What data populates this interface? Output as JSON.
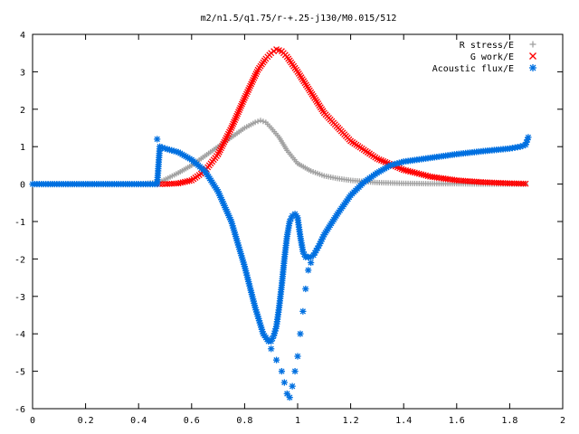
{
  "chart_data": {
    "type": "scatter",
    "title": "m2/n1.5/q1.75/r-+.25-j130/M0.015/512",
    "xlim": [
      0,
      2
    ],
    "ylim": [
      -6,
      4
    ],
    "xticks": [
      "0",
      "0.2",
      "0.4",
      "0.6",
      "0.8",
      "1",
      "1.2",
      "1.4",
      "1.6",
      "1.8",
      "2"
    ],
    "yticks": [
      "4",
      "3",
      "2",
      "1",
      "0",
      "-1",
      "-2",
      "-3",
      "-4",
      "-5",
      "-6"
    ],
    "grid": false,
    "legend_position": "top-right",
    "series": [
      {
        "name": "R stress/E",
        "marker": "plus",
        "color": "#a0a0a0",
        "x": [
          0,
          0.1,
          0.2,
          0.3,
          0.4,
          0.48,
          0.55,
          0.6,
          0.65,
          0.7,
          0.75,
          0.8,
          0.84,
          0.86,
          0.88,
          0.9,
          0.93,
          0.96,
          1.0,
          1.05,
          1.1,
          1.15,
          1.2,
          1.3,
          1.4,
          1.5,
          1.6,
          1.7,
          1.8,
          1.86
        ],
        "y": [
          0,
          0,
          0,
          0,
          0,
          0.05,
          0.3,
          0.5,
          0.75,
          1.0,
          1.25,
          1.5,
          1.65,
          1.7,
          1.65,
          1.5,
          1.25,
          0.9,
          0.55,
          0.35,
          0.22,
          0.15,
          0.1,
          0.04,
          0.02,
          0.01,
          0.01,
          0.0,
          0.0,
          0.0
        ]
      },
      {
        "name": "G work/E",
        "marker": "cross",
        "color": "#ff0000",
        "x": [
          0.48,
          0.5,
          0.55,
          0.6,
          0.65,
          0.7,
          0.75,
          0.8,
          0.85,
          0.88,
          0.9,
          0.92,
          0.94,
          0.96,
          1.0,
          1.05,
          1.1,
          1.2,
          1.3,
          1.4,
          1.5,
          1.6,
          1.7,
          1.8,
          1.86
        ],
        "y": [
          0,
          0,
          0.02,
          0.1,
          0.35,
          0.8,
          1.5,
          2.3,
          3.05,
          3.35,
          3.5,
          3.6,
          3.55,
          3.4,
          3.0,
          2.45,
          1.9,
          1.15,
          0.68,
          0.38,
          0.2,
          0.1,
          0.05,
          0.02,
          0.01
        ]
      },
      {
        "name": "Acoustic flux/E",
        "marker": "star",
        "color": "#0070e0",
        "x": [
          0,
          0.1,
          0.2,
          0.3,
          0.4,
          0.47,
          0.48,
          0.5,
          0.55,
          0.6,
          0.65,
          0.7,
          0.75,
          0.8,
          0.84,
          0.87,
          0.89,
          0.9,
          0.91,
          0.92,
          0.93,
          0.94,
          0.95,
          0.96,
          0.97,
          0.98,
          0.99,
          1.0,
          1.01,
          1.02,
          1.03,
          1.04,
          1.05,
          1.06,
          1.08,
          1.1,
          1.15,
          1.2,
          1.25,
          1.3,
          1.35,
          1.4,
          1.5,
          1.6,
          1.7,
          1.8,
          1.84,
          1.86,
          1.87
        ],
        "y": [
          0,
          0,
          0,
          0,
          0,
          0,
          1.0,
          0.95,
          0.85,
          0.65,
          0.35,
          -0.2,
          -1.0,
          -2.2,
          -3.3,
          -4.0,
          -4.2,
          -4.2,
          -4.05,
          -3.8,
          -3.3,
          -2.7,
          -2.0,
          -1.4,
          -1.0,
          -0.85,
          -0.8,
          -0.9,
          -1.4,
          -1.8,
          -1.95,
          -1.95,
          -1.95,
          -1.9,
          -1.65,
          -1.35,
          -0.8,
          -0.3,
          0.05,
          0.3,
          0.5,
          0.6,
          0.7,
          0.8,
          0.88,
          0.95,
          1.0,
          1.05,
          1.25
        ]
      },
      {
        "name": "",
        "marker": "star",
        "color": "#0070e0",
        "x": [
          0.47,
          0.9,
          0.92,
          0.94,
          0.95,
          0.96,
          0.97,
          0.98,
          0.99,
          1.0,
          1.01,
          1.02,
          1.03,
          1.04,
          1.05
        ],
        "y": [
          1.2,
          -4.4,
          -4.7,
          -5.0,
          -5.3,
          -5.6,
          -5.7,
          -5.4,
          -5.0,
          -4.6,
          -4.0,
          -3.4,
          -2.8,
          -2.3,
          -2.1
        ]
      }
    ]
  }
}
